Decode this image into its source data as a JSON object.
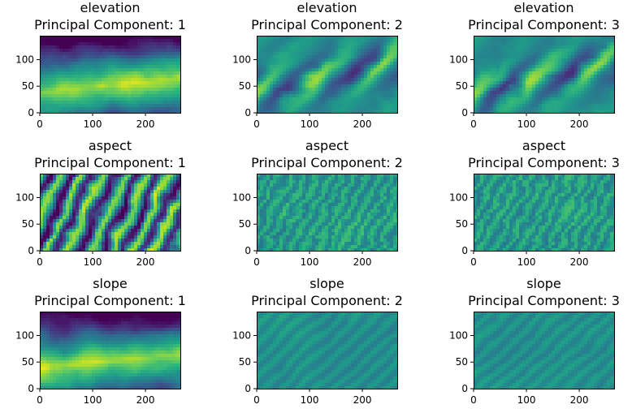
{
  "colors": {
    "colormap": "viridis",
    "background": "#ffffff",
    "axis": "#000000"
  },
  "chart_data": [
    {
      "type": "heatmap",
      "title": "elevation",
      "subtitle": "Principal Component: 1",
      "xlim": [
        0,
        266
      ],
      "ylim": [
        0,
        145
      ],
      "xticks": [
        0,
        100,
        200
      ],
      "yticks": [
        0,
        50,
        100
      ],
      "xlabel": "",
      "ylabel": "",
      "texture": "smooth"
    },
    {
      "type": "heatmap",
      "title": "elevation",
      "subtitle": "Principal Component: 2",
      "xlim": [
        0,
        266
      ],
      "ylim": [
        0,
        145
      ],
      "xticks": [
        0,
        100,
        200
      ],
      "yticks": [
        0,
        50,
        100
      ],
      "xlabel": "",
      "ylabel": "",
      "texture": "ridged"
    },
    {
      "type": "heatmap",
      "title": "elevation",
      "subtitle": "Principal Component: 3",
      "xlim": [
        0,
        266
      ],
      "ylim": [
        0,
        145
      ],
      "xticks": [
        0,
        100,
        200
      ],
      "yticks": [
        0,
        50,
        100
      ],
      "xlabel": "",
      "ylabel": "",
      "texture": "ridged"
    },
    {
      "type": "heatmap",
      "title": "aspect",
      "subtitle": "Principal Component: 1",
      "xlim": [
        0,
        266
      ],
      "ylim": [
        0,
        145
      ],
      "xticks": [
        0,
        100,
        200
      ],
      "yticks": [
        0,
        50,
        100
      ],
      "xlabel": "",
      "ylabel": "",
      "texture": "striped"
    },
    {
      "type": "heatmap",
      "title": "aspect",
      "subtitle": "Principal Component: 2",
      "xlim": [
        0,
        266
      ],
      "ylim": [
        0,
        145
      ],
      "xticks": [
        0,
        100,
        200
      ],
      "yticks": [
        0,
        50,
        100
      ],
      "xlabel": "",
      "ylabel": "",
      "texture": "fine"
    },
    {
      "type": "heatmap",
      "title": "aspect",
      "subtitle": "Principal Component: 3",
      "xlim": [
        0,
        266
      ],
      "ylim": [
        0,
        145
      ],
      "xticks": [
        0,
        100,
        200
      ],
      "yticks": [
        0,
        50,
        100
      ],
      "xlabel": "",
      "ylabel": "",
      "texture": "fine"
    },
    {
      "type": "heatmap",
      "title": "slope",
      "subtitle": "Principal Component: 1",
      "xlim": [
        0,
        266
      ],
      "ylim": [
        0,
        145
      ],
      "xticks": [
        0,
        100,
        200
      ],
      "yticks": [
        0,
        50,
        100
      ],
      "xlabel": "",
      "ylabel": "",
      "texture": "smooth"
    },
    {
      "type": "heatmap",
      "title": "slope",
      "subtitle": "Principal Component: 2",
      "xlim": [
        0,
        266
      ],
      "ylim": [
        0,
        145
      ],
      "xticks": [
        0,
        100,
        200
      ],
      "yticks": [
        0,
        50,
        100
      ],
      "xlabel": "",
      "ylabel": "",
      "texture": "faint"
    },
    {
      "type": "heatmap",
      "title": "slope",
      "subtitle": "Principal Component: 3",
      "xlim": [
        0,
        266
      ],
      "ylim": [
        0,
        145
      ],
      "xticks": [
        0,
        100,
        200
      ],
      "yticks": [
        0,
        50,
        100
      ],
      "xlabel": "",
      "ylabel": "",
      "texture": "faint"
    }
  ]
}
